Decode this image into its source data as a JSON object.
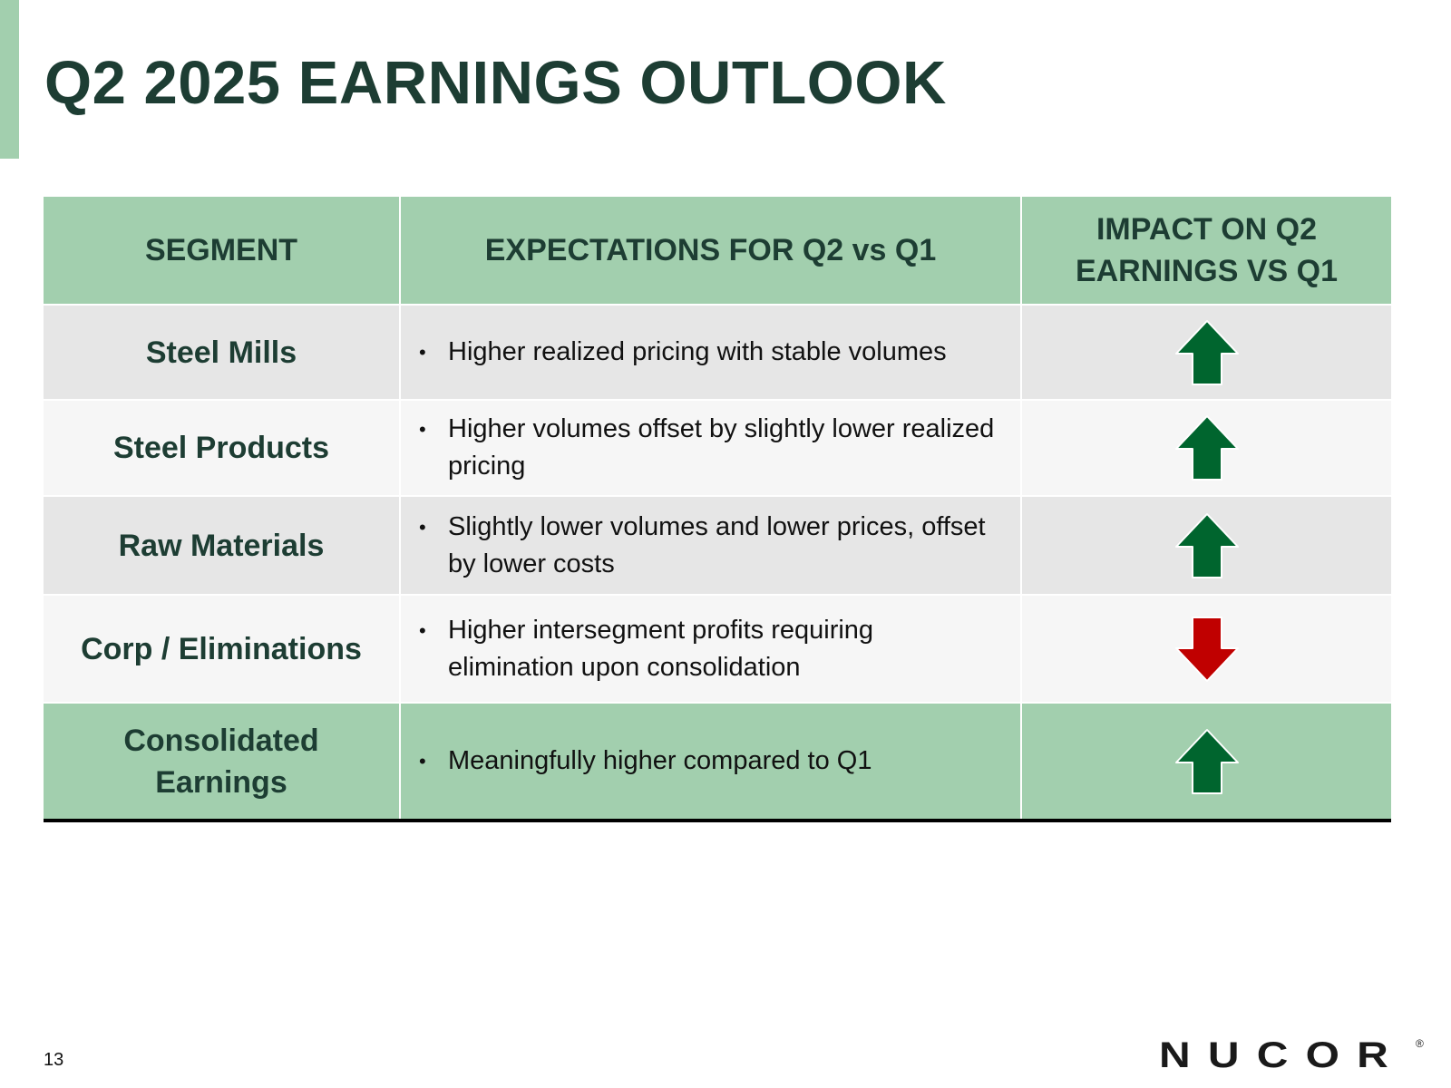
{
  "colors": {
    "header_green": "#a2cfae",
    "title_text": "#1d3d33",
    "row_gray": "#e6e6e6",
    "row_light": "#f6f6f6",
    "arrow_up": "#00652e",
    "arrow_down": "#c00000"
  },
  "title": "Q2 2025 EARNINGS OUTLOOK",
  "table": {
    "headers": {
      "segment": "SEGMENT",
      "expectations": "EXPECTATIONS FOR Q2 vs Q1",
      "impact": "IMPACT ON Q2 EARNINGS VS Q1"
    },
    "rows": [
      {
        "segment": "Steel Mills",
        "expectation": "Higher realized pricing with stable volumes",
        "impact": "up-arrow-icon"
      },
      {
        "segment": "Steel Products",
        "expectation": "Higher volumes offset by slightly lower realized pricing",
        "impact": "up-arrow-icon"
      },
      {
        "segment": "Raw Materials",
        "expectation": "Slightly lower volumes and lower prices, offset by lower costs",
        "impact": "up-arrow-icon"
      },
      {
        "segment": "Corp / Eliminations",
        "expectation": "Higher intersegment profits requiring elimination upon consolidation",
        "impact": "down-arrow-icon"
      },
      {
        "segment": "Consolidated Earnings",
        "expectation": "Meaningfully higher compared to Q1",
        "impact": "up-arrow-icon"
      }
    ]
  },
  "page_number": "13",
  "logo": {
    "text": "NUCOR",
    "mark": "®"
  }
}
